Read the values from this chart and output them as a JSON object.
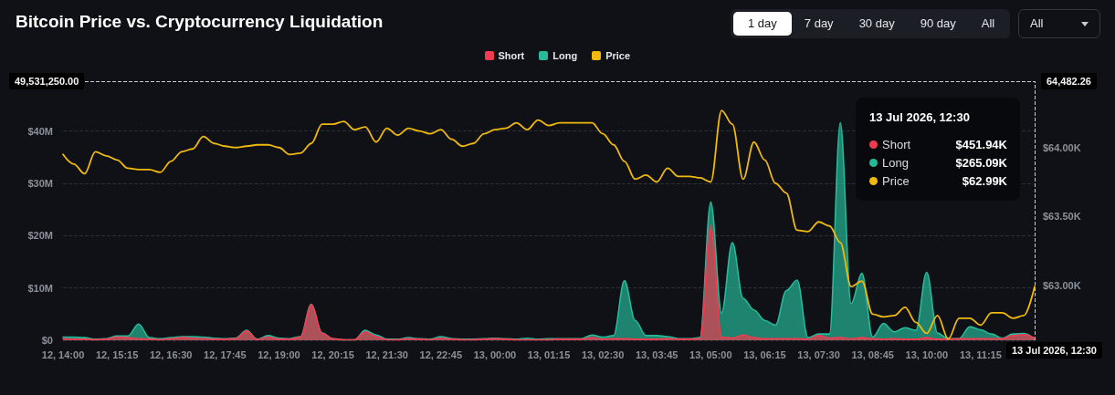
{
  "chart_data": {
    "type": "area",
    "title": "Bitcoin Price vs. Cryptocurrency Liquidation",
    "x": [
      "2026-07-12T14:00",
      "2026-07-12T14:15",
      "2026-07-12T14:30",
      "2026-07-12T14:45",
      "2026-07-12T15:00",
      "2026-07-12T15:15",
      "2026-07-12T15:30",
      "2026-07-12T15:45",
      "2026-07-12T16:00",
      "2026-07-12T16:15",
      "2026-07-12T16:30",
      "2026-07-12T16:45",
      "2026-07-12T17:00",
      "2026-07-12T17:15",
      "2026-07-12T17:30",
      "2026-07-12T17:45",
      "2026-07-12T18:00",
      "2026-07-12T18:15",
      "2026-07-12T18:30",
      "2026-07-12T18:45",
      "2026-07-12T19:00",
      "2026-07-12T19:15",
      "2026-07-12T19:30",
      "2026-07-12T19:45",
      "2026-07-12T20:00",
      "2026-07-12T20:15",
      "2026-07-12T20:30",
      "2026-07-12T20:45",
      "2026-07-12T21:00",
      "2026-07-12T21:15",
      "2026-07-12T21:30",
      "2026-07-12T21:45",
      "2026-07-12T22:00",
      "2026-07-12T22:15",
      "2026-07-12T22:30",
      "2026-07-12T22:45",
      "2026-07-12T23:00",
      "2026-07-12T23:15",
      "2026-07-12T23:30",
      "2026-07-12T23:45",
      "2026-07-13T00:00",
      "2026-07-13T00:15",
      "2026-07-13T00:30",
      "2026-07-13T00:45",
      "2026-07-13T01:00",
      "2026-07-13T01:15",
      "2026-07-13T01:30",
      "2026-07-13T01:45",
      "2026-07-13T02:00",
      "2026-07-13T02:15",
      "2026-07-13T02:30",
      "2026-07-13T02:45",
      "2026-07-13T03:00",
      "2026-07-13T03:15",
      "2026-07-13T03:30",
      "2026-07-13T03:45",
      "2026-07-13T04:00",
      "2026-07-13T04:15",
      "2026-07-13T04:30",
      "2026-07-13T04:45",
      "2026-07-13T05:00",
      "2026-07-13T05:15",
      "2026-07-13T05:30",
      "2026-07-13T05:45",
      "2026-07-13T06:00",
      "2026-07-13T06:15",
      "2026-07-13T06:30",
      "2026-07-13T06:45",
      "2026-07-13T07:00",
      "2026-07-13T07:15",
      "2026-07-13T07:30",
      "2026-07-13T07:45",
      "2026-07-13T08:00",
      "2026-07-13T08:15",
      "2026-07-13T08:30",
      "2026-07-13T08:45",
      "2026-07-13T09:00",
      "2026-07-13T09:15",
      "2026-07-13T09:30",
      "2026-07-13T09:45",
      "2026-07-13T10:00",
      "2026-07-13T10:15",
      "2026-07-13T10:30",
      "2026-07-13T10:45",
      "2026-07-13T11:00",
      "2026-07-13T11:15",
      "2026-07-13T11:30",
      "2026-07-13T11:45",
      "2026-07-13T12:00",
      "2026-07-13T12:15",
      "2026-07-13T12:30"
    ],
    "series": [
      {
        "name": "Short",
        "color": "#f23a50",
        "values": [
          0.3,
          0.2,
          0.2,
          0.1,
          0.2,
          0.6,
          0.5,
          0.3,
          0.2,
          0.1,
          0.3,
          0.5,
          0.4,
          0.3,
          0.2,
          0.2,
          0.3,
          1.8,
          0.1,
          0.6,
          0.2,
          0.2,
          0.6,
          6.8,
          1.3,
          0.3,
          0.1,
          0.1,
          1.6,
          0.7,
          0.1,
          0.1,
          0.3,
          0.2,
          0.1,
          0.4,
          0.2,
          0.1,
          0.1,
          0.2,
          0.3,
          0.2,
          0.1,
          0.1,
          0.1,
          0.1,
          0.2,
          0.2,
          0.2,
          0.5,
          0.2,
          0.3,
          0.3,
          0.2,
          0.2,
          0.2,
          0.3,
          0.2,
          0.2,
          0.3,
          21.9,
          0.6,
          0.4,
          1.0,
          0.5,
          0.3,
          0.3,
          0.3,
          0.3,
          0.2,
          0.9,
          0.4,
          0.5,
          0.3,
          0.5,
          0.3,
          0.2,
          0.3,
          0.2,
          0.2,
          0.5,
          0.2,
          0.2,
          0.3,
          0.3,
          0.3,
          0.3,
          0.3,
          0.9,
          1.1,
          0.45194
        ]
      },
      {
        "name": "Long",
        "color": "#27b99a",
        "values": [
          0.6,
          0.6,
          0.5,
          0.2,
          0.3,
          0.8,
          0.8,
          3.1,
          0.5,
          0.3,
          0.5,
          0.7,
          0.7,
          0.6,
          0.4,
          0.3,
          0.4,
          1.9,
          0.2,
          0.9,
          0.4,
          0.3,
          0.7,
          6.9,
          1.4,
          0.3,
          0.1,
          0.1,
          1.9,
          1.0,
          0.2,
          0.2,
          0.5,
          0.3,
          0.2,
          0.7,
          0.3,
          0.2,
          0.2,
          0.3,
          0.4,
          0.3,
          0.2,
          0.4,
          0.2,
          0.3,
          0.3,
          0.3,
          0.3,
          1.0,
          0.6,
          0.9,
          11.4,
          3.8,
          0.9,
          0.9,
          0.7,
          0.3,
          0.3,
          0.5,
          26.4,
          5.2,
          18.7,
          8.0,
          5.8,
          3.8,
          2.9,
          9.5,
          11.5,
          0.5,
          1.2,
          1.2,
          41.6,
          7.0,
          12.8,
          0.6,
          3.2,
          1.6,
          2.4,
          1.9,
          13.0,
          1.4,
          0.3,
          0.3,
          2.6,
          2.0,
          1.2,
          0.4,
          1.2,
          1.3,
          0.26509
        ]
      },
      {
        "name": "Price",
        "color": "#f0b90b",
        "type": "line",
        "axis": "y2",
        "values": [
          63.95,
          63.88,
          63.81,
          63.97,
          63.94,
          63.91,
          63.85,
          63.84,
          63.84,
          63.82,
          63.9,
          63.97,
          63.99,
          64.08,
          64.03,
          64.01,
          64.0,
          64.01,
          64.02,
          64.02,
          64.0,
          63.95,
          63.96,
          64.03,
          64.17,
          64.17,
          64.19,
          64.13,
          64.15,
          64.04,
          64.14,
          64.09,
          64.14,
          64.12,
          64.1,
          64.13,
          64.06,
          64.01,
          64.03,
          64.1,
          64.13,
          64.14,
          64.18,
          64.13,
          64.2,
          64.16,
          64.18,
          64.18,
          64.18,
          64.18,
          64.1,
          64.02,
          63.9,
          63.77,
          63.8,
          63.75,
          63.85,
          63.79,
          63.79,
          63.78,
          63.75,
          64.27,
          64.17,
          63.77,
          64.04,
          63.91,
          63.74,
          63.67,
          63.4,
          63.39,
          63.46,
          63.43,
          63.31,
          62.99,
          63.03,
          62.79,
          62.77,
          62.78,
          62.84,
          62.73,
          62.65,
          62.78,
          62.61,
          62.76,
          62.76,
          62.71,
          62.8,
          62.8,
          62.76,
          62.78,
          62.99
        ]
      }
    ],
    "xlim": [
      "2026-07-12T14:00",
      "2026-07-13T12:30"
    ],
    "xticks": [
      {
        "value": "2026-07-12T14:00",
        "label": "12, 14:00"
      },
      {
        "value": "2026-07-12T15:15",
        "label": "12, 15:15"
      },
      {
        "value": "2026-07-12T16:30",
        "label": "12, 16:30"
      },
      {
        "value": "2026-07-12T17:45",
        "label": "12, 17:45"
      },
      {
        "value": "2026-07-12T19:00",
        "label": "12, 19:00"
      },
      {
        "value": "2026-07-12T20:15",
        "label": "12, 20:15"
      },
      {
        "value": "2026-07-12T21:30",
        "label": "12, 21:30"
      },
      {
        "value": "2026-07-12T22:45",
        "label": "12, 22:45"
      },
      {
        "value": "2026-07-13T00:00",
        "label": "13, 00:00"
      },
      {
        "value": "2026-07-13T01:15",
        "label": "13, 01:15"
      },
      {
        "value": "2026-07-13T02:30",
        "label": "13, 02:30"
      },
      {
        "value": "2026-07-13T03:45",
        "label": "13, 03:45"
      },
      {
        "value": "2026-07-13T05:00",
        "label": "13, 05:00"
      },
      {
        "value": "2026-07-13T06:15",
        "label": "13, 06:15"
      },
      {
        "value": "2026-07-13T07:30",
        "label": "13, 07:30"
      },
      {
        "value": "2026-07-13T08:45",
        "label": "13, 08:45"
      },
      {
        "value": "2026-07-13T10:00",
        "label": "13, 10:00"
      },
      {
        "value": "2026-07-13T11:15",
        "label": "13, 11:15"
      }
    ],
    "ylim": [
      0,
      49.53125
    ],
    "yticks": [
      {
        "value": 0,
        "label": "$0"
      },
      {
        "value": 10,
        "label": "$10M"
      },
      {
        "value": 20,
        "label": "$20M"
      },
      {
        "value": 30,
        "label": "$30M"
      },
      {
        "value": 40,
        "label": "$40M"
      }
    ],
    "y2lim": [
      62.6,
      64.48226
    ],
    "y2ticks": [
      {
        "value": 63,
        "label": "$63.00K"
      },
      {
        "value": 63.5,
        "label": "$63.50K"
      },
      {
        "value": 64,
        "label": "$64.00K"
      }
    ],
    "ref_lines": [
      {
        "axis": "y",
        "value": 49.53125,
        "label": "49,531,250.00",
        "line_style": "dashed",
        "color": "#c9ccd1"
      },
      {
        "axis": "x",
        "value": "2026-07-13T12:30",
        "label": "13 Jul 2026, 12:30",
        "line_style": "dashed",
        "color": "#c9ccd1"
      }
    ],
    "annotations": [
      "13 Jul 2026, 12:30",
      "$451.94K",
      "$265.09K",
      "$62.99K",
      "1 day",
      "7 day",
      "30 day",
      "90 day",
      "All",
      "All",
      {
        "text": "64,482.26",
        "x": "2026-07-13T12:30",
        "y": 49.53125
      }
    ],
    "grid": "y",
    "legend": "top",
    "marker": "none",
    "line_style": "solid"
  }
}
